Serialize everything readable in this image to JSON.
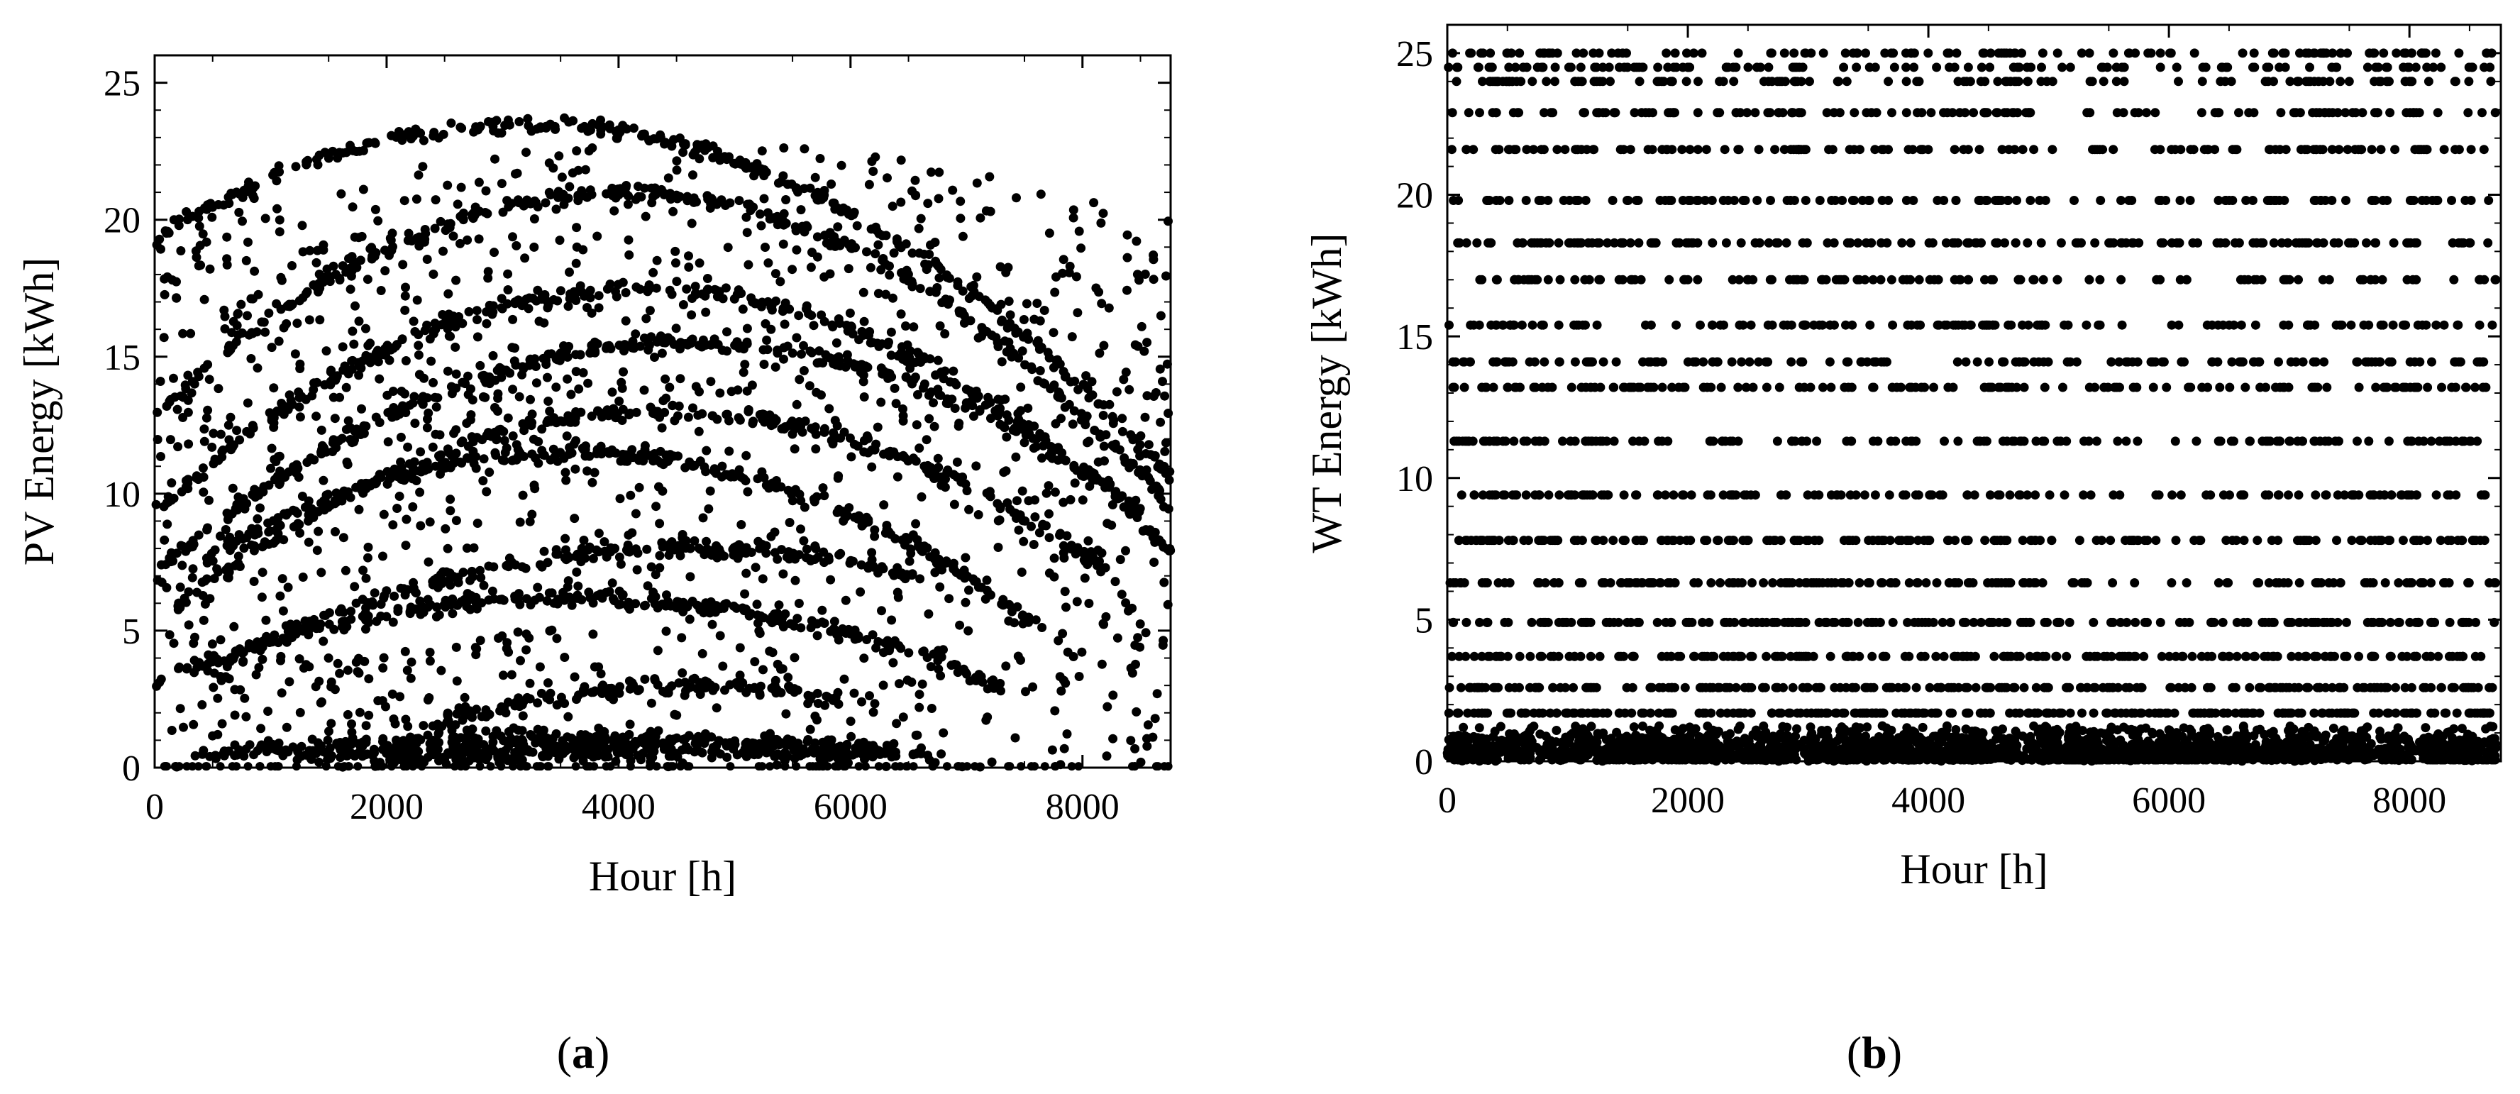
{
  "figure": {
    "panel_a_label": {
      "open": "(",
      "letter": "a",
      "close": ")"
    },
    "panel_b_label": {
      "open": "(",
      "letter": "b",
      "close": ")"
    }
  },
  "chart_data": [
    {
      "type": "scatter",
      "panel": "a",
      "title": "",
      "xlabel": "Hour [h]",
      "ylabel": "PV Energy [kWh]",
      "xlim": [
        0,
        8760
      ],
      "ylim": [
        0,
        26
      ],
      "xticks": [
        0,
        2000,
        4000,
        6000,
        8000
      ],
      "yticks": [
        0,
        5,
        10,
        15,
        20,
        25
      ],
      "marker_color": "#000000",
      "grid": false,
      "legend": "none",
      "band_peaks": [
        23.5,
        21.0,
        17.5,
        15.5,
        13.0,
        11.5,
        8.0,
        6.2,
        3.0,
        1.1,
        0.8,
        0.5
      ],
      "band_peak_hours": [
        3200,
        4000,
        4200,
        4600,
        4400,
        3600,
        4600,
        3600,
        4600,
        3600,
        4200,
        4400
      ],
      "band_spans": [
        [
          0,
          8760
        ],
        [
          0,
          8760
        ],
        [
          0,
          8760
        ],
        [
          0,
          8500
        ],
        [
          200,
          8200
        ],
        [
          300,
          7600
        ],
        [
          500,
          6600
        ],
        [
          0,
          7400
        ],
        [
          2300,
          5900
        ],
        [
          400,
          6400
        ],
        [
          1200,
          6700
        ],
        [
          1900,
          6200
        ]
      ],
      "scattered_points": 1400
    },
    {
      "type": "scatter",
      "panel": "b",
      "title": "",
      "xlabel": "Hour [h]",
      "ylabel": "WT Energy [kWh]",
      "xlim": [
        0,
        8760
      ],
      "ylim": [
        0,
        26
      ],
      "xticks": [
        0,
        2000,
        4000,
        6000,
        8000
      ],
      "yticks": [
        0,
        5,
        10,
        15,
        20,
        25
      ],
      "marker_color": "#000000",
      "grid": false,
      "legend": "none",
      "discrete_levels": [
        0.2,
        0.5,
        1.0,
        1.7,
        2.6,
        3.7,
        4.9,
        6.3,
        7.8,
        9.4,
        11.3,
        13.2,
        14.1,
        15.4,
        17.0,
        18.3,
        19.8,
        21.6,
        22.9,
        24.0,
        24.5,
        25.0
      ],
      "calm_periods": [
        [
          5000,
          5500
        ],
        [
          5750,
          6250
        ],
        [
          8150,
          8350
        ]
      ],
      "windy_periods": [
        [
          350,
          600
        ],
        [
          700,
          850
        ],
        [
          1050,
          1300
        ],
        [
          2850,
          3000
        ],
        [
          4550,
          4850
        ],
        [
          7150,
          7300
        ],
        [
          7650,
          7800
        ],
        [
          7950,
          8250
        ]
      ],
      "points_per_hour": 0.55
    }
  ]
}
